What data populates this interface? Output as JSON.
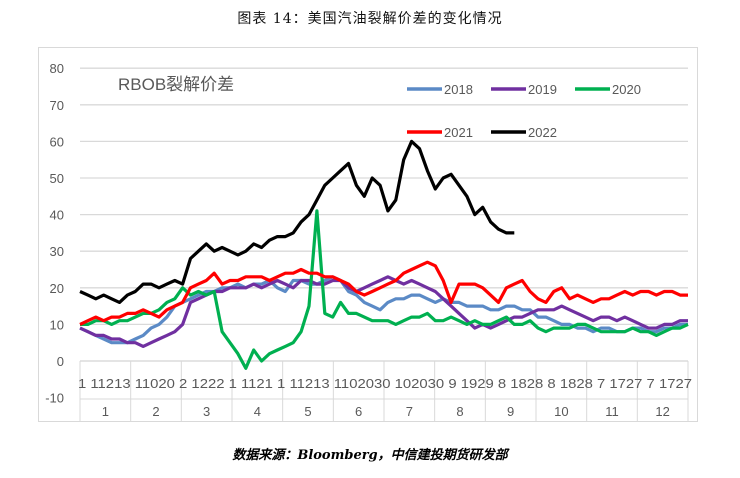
{
  "title": "图表 14：美国汽油裂解价差的变化情况",
  "source": "数据来源：Bloomberg，中信建投期货研发部",
  "chart_data": {
    "type": "line",
    "title": "RBOB裂解价差",
    "xlabel": "",
    "ylabel": "",
    "ylim": [
      -10,
      80
    ],
    "yticks": [
      -10,
      0,
      10,
      20,
      30,
      40,
      50,
      60,
      70,
      80
    ],
    "grid": true,
    "legend_position": "top-right",
    "x_day_tick_labels": [
      "1 11213",
      "11020",
      "2 1222",
      "1 1121",
      "1 11213",
      "11020",
      "3010",
      "2030",
      "9 1929",
      "8 1828",
      "8 1828",
      "7 1727",
      "7 1727"
    ],
    "x_day_tick_label_row": "1 11213 11020 2 1222 1 1121 1 11213 1102030 102030 9 1929 8 1828 8 1828 7 1727 7 1727",
    "categories": [
      "1",
      "2",
      "3",
      "4",
      "5",
      "6",
      "7",
      "8",
      "9",
      "10",
      "11",
      "12"
    ],
    "x_points_per_month": 4,
    "series": [
      {
        "name": "2018",
        "color": "#5b8ac6",
        "values": [
          9,
          8,
          7,
          6,
          5,
          5,
          5,
          6,
          7,
          9,
          10,
          12,
          15,
          16,
          17,
          18,
          19,
          19,
          20,
          20,
          21,
          20,
          21,
          21,
          22,
          20,
          19,
          22,
          22,
          21,
          21,
          22,
          23,
          22,
          19,
          18,
          16,
          15,
          14,
          16,
          17,
          17,
          18,
          18,
          17,
          16,
          17,
          16,
          16,
          15,
          15,
          15,
          14,
          14,
          15,
          15,
          14,
          14,
          12,
          12,
          11,
          10,
          10,
          9,
          9,
          8,
          9,
          9,
          8,
          8,
          9,
          9,
          8,
          8,
          9,
          9,
          10,
          10
        ]
      },
      {
        "name": "2019",
        "color": "#7030a0",
        "values": [
          9,
          8,
          7,
          7,
          6,
          6,
          5,
          5,
          4,
          5,
          6,
          7,
          8,
          10,
          16,
          17,
          18,
          19,
          19,
          20,
          20,
          20,
          21,
          20,
          21,
          22,
          21,
          20,
          22,
          22,
          21,
          21,
          22,
          22,
          20,
          19,
          20,
          21,
          22,
          23,
          22,
          21,
          22,
          21,
          20,
          19,
          17,
          15,
          13,
          11,
          9,
          10,
          9,
          10,
          11,
          12,
          12,
          13,
          14,
          14,
          14,
          15,
          14,
          13,
          12,
          11,
          12,
          12,
          11,
          12,
          11,
          10,
          9,
          9,
          10,
          10,
          11,
          11
        ]
      },
      {
        "name": "2020",
        "color": "#00b050",
        "values": [
          10,
          10,
          11,
          11,
          10,
          11,
          11,
          12,
          13,
          13,
          14,
          16,
          17,
          20,
          18,
          19,
          18,
          19,
          8,
          5,
          2,
          -2,
          3,
          0,
          2,
          3,
          4,
          5,
          8,
          15,
          41,
          13,
          12,
          16,
          13,
          13,
          12,
          11,
          11,
          11,
          10,
          11,
          12,
          12,
          13,
          11,
          11,
          12,
          11,
          10,
          11,
          10,
          10,
          11,
          12,
          10,
          10,
          11,
          9,
          8,
          9,
          9,
          9,
          10,
          10,
          9,
          8,
          8,
          8,
          8,
          9,
          8,
          8,
          7,
          8,
          9,
          9,
          10
        ]
      },
      {
        "name": "2021",
        "color": "#ff0000",
        "values": [
          10,
          11,
          12,
          11,
          12,
          12,
          13,
          13,
          14,
          13,
          12,
          14,
          15,
          16,
          20,
          21,
          22,
          24,
          21,
          22,
          22,
          23,
          23,
          23,
          22,
          23,
          24,
          24,
          25,
          24,
          24,
          23,
          23,
          22,
          21,
          19,
          18,
          19,
          20,
          21,
          22,
          24,
          25,
          26,
          27,
          26,
          22,
          16,
          21,
          21,
          21,
          20,
          18,
          16,
          20,
          21,
          22,
          19,
          17,
          16,
          19,
          20,
          17,
          18,
          17,
          16,
          17,
          17,
          18,
          19,
          18,
          19,
          19,
          18,
          19,
          19,
          18,
          18
        ]
      },
      {
        "name": "2022",
        "color": "#000000",
        "values": [
          19,
          18,
          17,
          18,
          17,
          16,
          18,
          19,
          21,
          21,
          20,
          21,
          22,
          21,
          28,
          30,
          32,
          30,
          31,
          30,
          29,
          30,
          32,
          31,
          33,
          34,
          34,
          35,
          38,
          40,
          44,
          48,
          50,
          52,
          54,
          48,
          45,
          50,
          48,
          41,
          44,
          55,
          60,
          58,
          52,
          47,
          50,
          51,
          48,
          45,
          40,
          42,
          38,
          36,
          35,
          35
        ]
      }
    ]
  },
  "legend": [
    {
      "label": "2018",
      "color": "#5b8ac6"
    },
    {
      "label": "2019",
      "color": "#7030a0"
    },
    {
      "label": "2020",
      "color": "#00b050"
    },
    {
      "label": "2021",
      "color": "#ff0000"
    },
    {
      "label": "2022",
      "color": "#000000"
    }
  ]
}
